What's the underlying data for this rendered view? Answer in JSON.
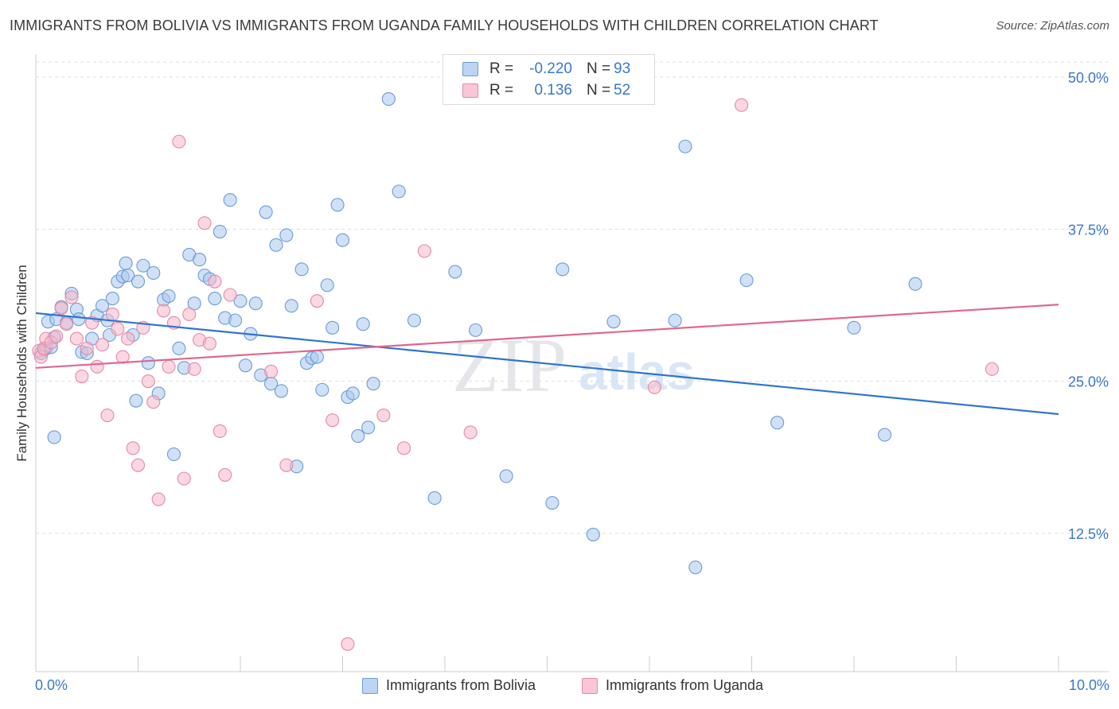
{
  "title": "IMMIGRANTS FROM BOLIVIA VS IMMIGRANTS FROM UGANDA FAMILY HOUSEHOLDS WITH CHILDREN CORRELATION CHART",
  "source": "Source: ZipAtlas.com",
  "legend_top": {
    "bolivia": {
      "r_label": "R =",
      "r_value": "-0.220",
      "n_label": "N =",
      "n_value": "93"
    },
    "uganda": {
      "r_label": "R =",
      "r_value": "0.136",
      "n_label": "N =",
      "n_value": "52"
    }
  },
  "colors": {
    "bolivia_fill": "#aac8ee",
    "bolivia_stroke": "#6a9bd8",
    "bolivia_line": "#2f74d0",
    "uganda_fill": "#f5b6c9",
    "uganda_stroke": "#e48aa8",
    "uganda_line": "#e0668f",
    "tick_text": "#3a78c9",
    "grid": "#dddddd"
  },
  "watermark": {
    "zip": "ZIP",
    "atlas": "atlas"
  },
  "chart_data": {
    "type": "scatter",
    "title": "IMMIGRANTS FROM BOLIVIA VS IMMIGRANTS FROM UGANDA FAMILY HOUSEHOLDS WITH CHILDREN CORRELATION CHART",
    "xlabel": "",
    "ylabel": "Family Households with Children",
    "xlim": [
      0,
      10
    ],
    "ylim": [
      0,
      52
    ],
    "x_tick_labels": {
      "left": "0.0%",
      "right": "10.0%"
    },
    "y_ticks": [
      {
        "value": 50,
        "label": "50.0%"
      },
      {
        "value": 37.5,
        "label": "37.5%"
      },
      {
        "value": 25,
        "label": "25.0%"
      },
      {
        "value": 12.5,
        "label": "12.5%"
      }
    ],
    "series": [
      {
        "name": "Immigrants from Bolivia",
        "r": -0.22,
        "n": 93,
        "trend": {
          "x0": 0,
          "y0": 30.6,
          "x1": 10,
          "y1": 22.3
        },
        "points": [
          [
            0.05,
            27.3
          ],
          [
            0.08,
            27.6
          ],
          [
            0.1,
            27.7
          ],
          [
            0.12,
            29.9
          ],
          [
            0.15,
            27.8
          ],
          [
            0.18,
            28.6
          ],
          [
            0.2,
            30.1
          ],
          [
            0.25,
            31.1
          ],
          [
            0.3,
            29.8
          ],
          [
            0.35,
            32.2
          ],
          [
            0.4,
            30.9
          ],
          [
            0.42,
            30.1
          ],
          [
            0.45,
            27.4
          ],
          [
            0.5,
            27.3
          ],
          [
            0.55,
            28.5
          ],
          [
            0.6,
            30.4
          ],
          [
            0.65,
            31.2
          ],
          [
            0.7,
            30.0
          ],
          [
            0.72,
            28.8
          ],
          [
            0.75,
            31.8
          ],
          [
            0.8,
            33.2
          ],
          [
            0.85,
            33.6
          ],
          [
            0.88,
            34.7
          ],
          [
            0.9,
            33.7
          ],
          [
            0.95,
            28.8
          ],
          [
            0.98,
            23.4
          ],
          [
            1.0,
            33.2
          ],
          [
            1.05,
            34.5
          ],
          [
            1.1,
            26.5
          ],
          [
            1.15,
            33.9
          ],
          [
            1.2,
            24.0
          ],
          [
            1.25,
            31.7
          ],
          [
            1.3,
            32.0
          ],
          [
            1.35,
            19.0
          ],
          [
            1.4,
            27.7
          ],
          [
            1.45,
            26.1
          ],
          [
            1.5,
            35.4
          ],
          [
            1.55,
            31.4
          ],
          [
            1.6,
            35.0
          ],
          [
            1.65,
            33.7
          ],
          [
            1.7,
            33.4
          ],
          [
            1.75,
            31.8
          ],
          [
            1.8,
            37.3
          ],
          [
            1.85,
            30.2
          ],
          [
            1.9,
            39.9
          ],
          [
            1.95,
            30.0
          ],
          [
            2.0,
            31.6
          ],
          [
            2.05,
            26.3
          ],
          [
            2.1,
            28.9
          ],
          [
            2.15,
            31.4
          ],
          [
            2.2,
            25.5
          ],
          [
            2.25,
            38.9
          ],
          [
            2.3,
            24.8
          ],
          [
            2.35,
            36.2
          ],
          [
            2.4,
            24.2
          ],
          [
            2.45,
            37.0
          ],
          [
            2.5,
            31.2
          ],
          [
            2.55,
            18.0
          ],
          [
            2.6,
            34.2
          ],
          [
            2.65,
            26.5
          ],
          [
            2.7,
            26.9
          ],
          [
            2.75,
            27.0
          ],
          [
            2.8,
            24.3
          ],
          [
            2.85,
            32.9
          ],
          [
            2.9,
            29.4
          ],
          [
            2.95,
            39.5
          ],
          [
            3.0,
            36.6
          ],
          [
            3.05,
            23.7
          ],
          [
            3.1,
            24.0
          ],
          [
            3.15,
            20.5
          ],
          [
            3.2,
            29.7
          ],
          [
            3.25,
            21.2
          ],
          [
            3.3,
            24.8
          ],
          [
            3.45,
            48.2
          ],
          [
            3.55,
            40.6
          ],
          [
            3.7,
            30.0
          ],
          [
            3.9,
            15.4
          ],
          [
            4.1,
            34.0
          ],
          [
            4.3,
            29.2
          ],
          [
            4.6,
            17.2
          ],
          [
            5.05,
            15.0
          ],
          [
            5.15,
            34.2
          ],
          [
            5.45,
            12.4
          ],
          [
            5.65,
            29.9
          ],
          [
            6.25,
            30.0
          ],
          [
            6.45,
            9.7
          ],
          [
            6.35,
            44.3
          ],
          [
            6.95,
            33.3
          ],
          [
            7.25,
            21.6
          ],
          [
            8.0,
            29.4
          ],
          [
            8.3,
            20.6
          ],
          [
            8.6,
            33.0
          ],
          [
            0.18,
            20.4
          ]
        ]
      },
      {
        "name": "Immigrants from Uganda",
        "r": 0.136,
        "n": 52,
        "trend": {
          "x0": 0,
          "y0": 26.1,
          "x1": 10,
          "y1": 31.3
        },
        "points": [
          [
            0.03,
            27.5
          ],
          [
            0.05,
            27.0
          ],
          [
            0.08,
            27.7
          ],
          [
            0.1,
            28.5
          ],
          [
            0.15,
            28.2
          ],
          [
            0.2,
            28.7
          ],
          [
            0.25,
            31.0
          ],
          [
            0.3,
            29.7
          ],
          [
            0.35,
            31.9
          ],
          [
            0.4,
            28.5
          ],
          [
            0.45,
            25.4
          ],
          [
            0.5,
            27.7
          ],
          [
            0.55,
            29.8
          ],
          [
            0.6,
            26.2
          ],
          [
            0.65,
            28.0
          ],
          [
            0.7,
            22.2
          ],
          [
            0.75,
            30.5
          ],
          [
            0.8,
            29.3
          ],
          [
            0.85,
            27.0
          ],
          [
            0.9,
            28.5
          ],
          [
            0.95,
            19.5
          ],
          [
            1.0,
            18.1
          ],
          [
            1.05,
            29.4
          ],
          [
            1.1,
            25.0
          ],
          [
            1.15,
            23.3
          ],
          [
            1.2,
            15.3
          ],
          [
            1.25,
            30.8
          ],
          [
            1.3,
            26.2
          ],
          [
            1.35,
            29.8
          ],
          [
            1.4,
            44.7
          ],
          [
            1.45,
            17.0
          ],
          [
            1.5,
            30.5
          ],
          [
            1.55,
            26.0
          ],
          [
            1.6,
            28.4
          ],
          [
            1.65,
            38.0
          ],
          [
            1.7,
            28.1
          ],
          [
            1.75,
            33.2
          ],
          [
            1.8,
            20.9
          ],
          [
            1.85,
            17.3
          ],
          [
            1.9,
            32.1
          ],
          [
            2.3,
            25.8
          ],
          [
            2.45,
            18.1
          ],
          [
            2.75,
            31.6
          ],
          [
            2.9,
            21.8
          ],
          [
            3.05,
            3.4
          ],
          [
            3.4,
            22.2
          ],
          [
            3.6,
            19.5
          ],
          [
            3.8,
            35.7
          ],
          [
            4.25,
            20.8
          ],
          [
            6.05,
            24.5
          ],
          [
            6.9,
            47.7
          ],
          [
            9.35,
            26.0
          ]
        ]
      }
    ]
  },
  "legend_bottom": [
    {
      "label": "Immigrants from Bolivia",
      "key": "bolivia"
    },
    {
      "label": "Immigrants from Uganda",
      "key": "uganda"
    }
  ]
}
